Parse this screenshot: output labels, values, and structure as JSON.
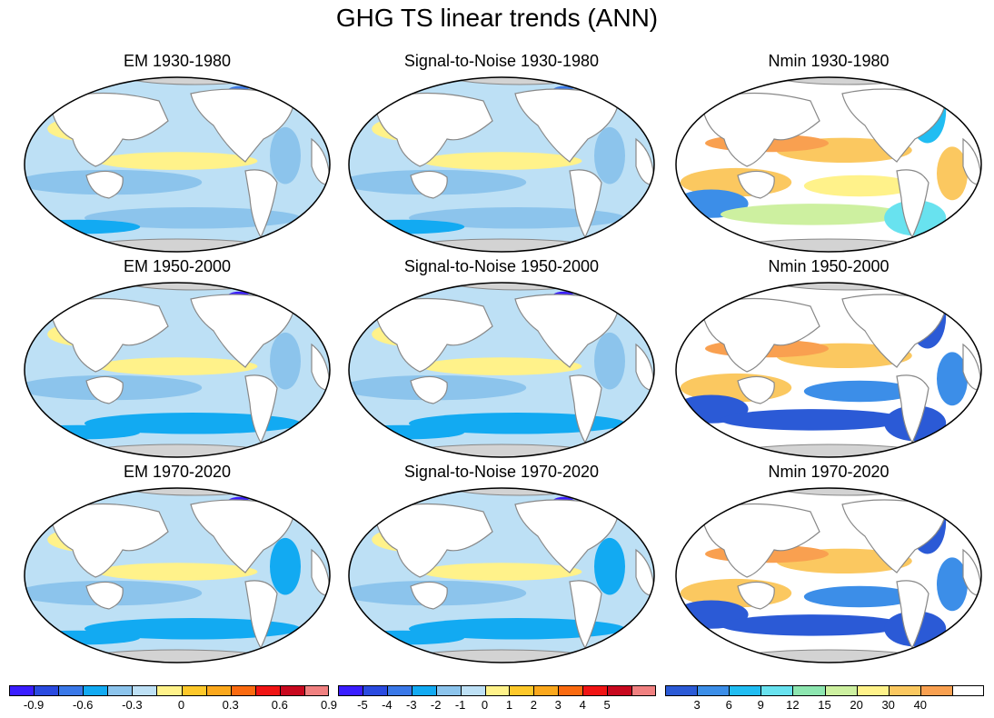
{
  "title": "GHG TS linear trends (ANN)",
  "panels": [
    {
      "title": "EM 1930-1980",
      "scale": "em",
      "period": 0
    },
    {
      "title": "Signal-to-Noise 1930-1980",
      "scale": "snr",
      "period": 0
    },
    {
      "title": "Nmin 1930-1980",
      "scale": "nmin",
      "period": 0
    },
    {
      "title": "EM 1950-2000",
      "scale": "em",
      "period": 1
    },
    {
      "title": "Signal-to-Noise 1950-2000",
      "scale": "snr",
      "period": 1
    },
    {
      "title": "Nmin 1950-2000",
      "scale": "nmin",
      "period": 1
    },
    {
      "title": "EM 1970-2020",
      "scale": "em",
      "period": 2
    },
    {
      "title": "Signal-to-Noise 1970-2020",
      "scale": "snr",
      "period": 2
    },
    {
      "title": "Nmin 1970-2020",
      "scale": "nmin",
      "period": 2
    }
  ],
  "colorbars": [
    {
      "name": "em",
      "colors": [
        "#3a1dff",
        "#2a4ae0",
        "#3a78e8",
        "#12aaf2",
        "#8cc4ec",
        "#bde0f5",
        "#fff28a",
        "#fdc82a",
        "#fba81c",
        "#fa6a10",
        "#f01414",
        "#c8081e",
        "#f08080"
      ],
      "labels": [
        "-0.9",
        "-0.6",
        "-0.3",
        "0",
        "0.3",
        "0.6",
        "0.9"
      ]
    },
    {
      "name": "snr",
      "colors": [
        "#3a1dff",
        "#2a4ae0",
        "#3a78e8",
        "#12aaf2",
        "#8cc4ec",
        "#bde0f5",
        "#fff28a",
        "#fdc82a",
        "#fba81c",
        "#fa6a10",
        "#f01414",
        "#c8081e",
        "#f08080"
      ],
      "labels": [
        "-5",
        "-4",
        "-3",
        "-2",
        "-1",
        "0",
        "1",
        "2",
        "3",
        "4",
        "5"
      ]
    },
    {
      "name": "nmin",
      "colors": [
        "#2b5ad6",
        "#3c8ee8",
        "#21bdf2",
        "#68e2ef",
        "#8de6b0",
        "#cdf0a0",
        "#fff28a",
        "#fbc860",
        "#f9a050",
        "#ffffff"
      ],
      "labels": [
        "3",
        "6",
        "9",
        "12",
        "15",
        "20",
        "30",
        "40"
      ]
    }
  ],
  "chart_data": {
    "type": "map",
    "variable": "TS linear trends",
    "periods": [
      "1930-1980",
      "1950-2000",
      "1970-2020"
    ],
    "fields": [
      "EM",
      "Signal-to-Noise",
      "Nmin"
    ],
    "em_levels": [
      -0.9,
      -0.6,
      -0.3,
      0,
      0.3,
      0.6,
      0.9
    ],
    "snr_levels": [
      -5,
      -4,
      -3,
      -2,
      -1,
      0,
      1,
      2,
      3,
      4,
      5
    ],
    "nmin_levels": [
      3,
      6,
      9,
      12,
      15,
      20,
      30,
      40
    ]
  }
}
